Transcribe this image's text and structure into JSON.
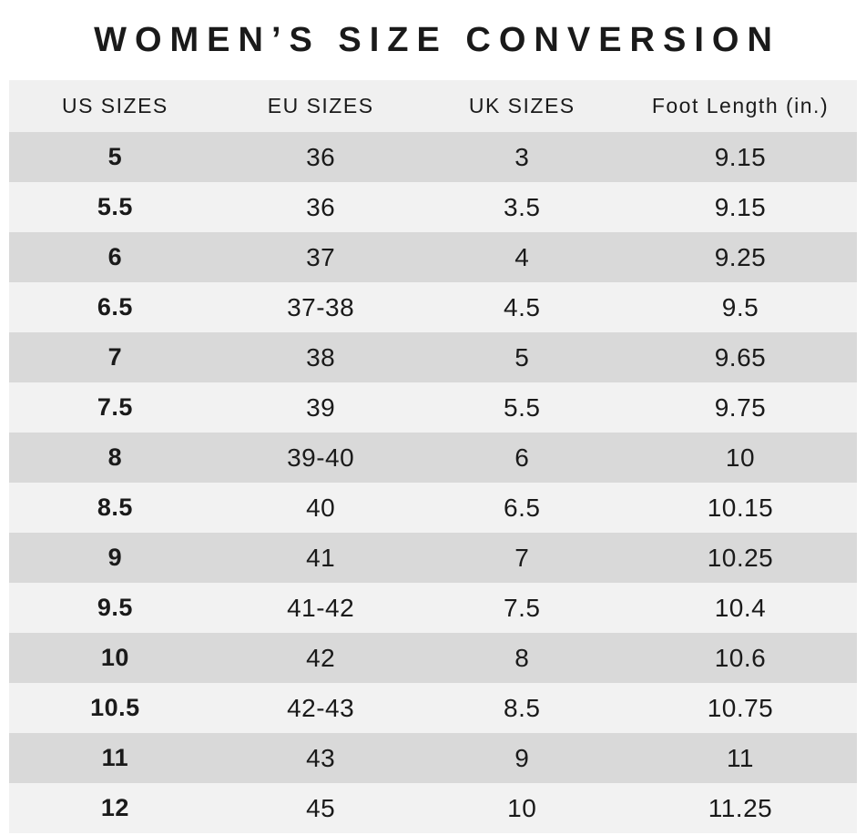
{
  "colors": {
    "background": "#ffffff",
    "header_bg": "#f0f0f0",
    "row_dark": "#d9d9d9",
    "row_light": "#f2f2f2",
    "text": "#1a1a1a"
  },
  "chart_data": {
    "type": "table",
    "title": "WOMEN’S SIZE CONVERSION",
    "columns": [
      "US SIZES",
      "EU SIZES",
      "UK SIZES",
      "Foot Length (in.)"
    ],
    "rows": [
      [
        "5",
        "36",
        "3",
        "9.15"
      ],
      [
        "5.5",
        "36",
        "3.5",
        "9.15"
      ],
      [
        "6",
        "37",
        "4",
        "9.25"
      ],
      [
        "6.5",
        "37-38",
        "4.5",
        "9.5"
      ],
      [
        "7",
        "38",
        "5",
        "9.65"
      ],
      [
        "7.5",
        "39",
        "5.5",
        "9.75"
      ],
      [
        "8",
        "39-40",
        "6",
        "10"
      ],
      [
        "8.5",
        "40",
        "6.5",
        "10.15"
      ],
      [
        "9",
        "41",
        "7",
        "10.25"
      ],
      [
        "9.5",
        "41-42",
        "7.5",
        "10.4"
      ],
      [
        "10",
        "42",
        "8",
        "10.6"
      ],
      [
        "10.5",
        "42-43",
        "8.5",
        "10.75"
      ],
      [
        "11",
        "43",
        "9",
        "11"
      ],
      [
        "12",
        "45",
        "10",
        "11.25"
      ]
    ],
    "layout": {
      "row_striping": "alternating starting dark",
      "first_column_bold": true,
      "text_alignment": "center"
    }
  }
}
